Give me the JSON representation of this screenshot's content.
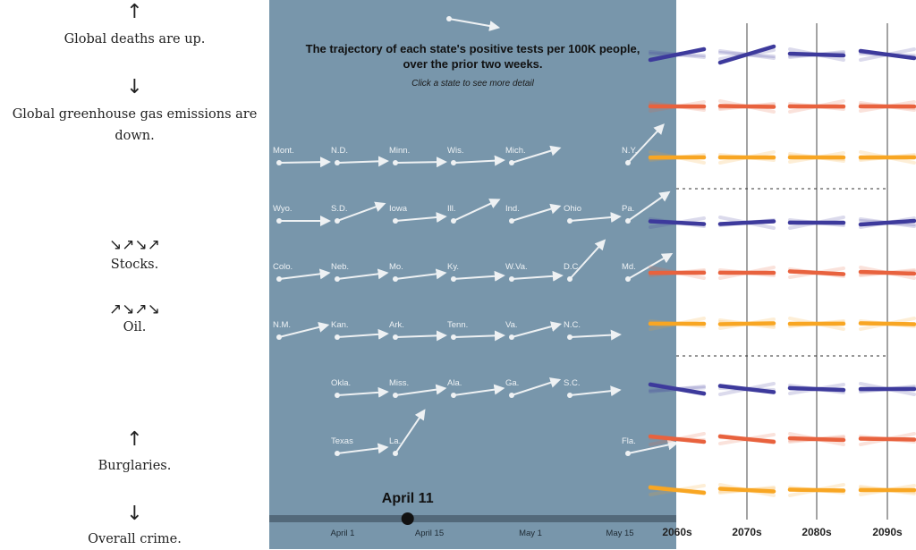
{
  "left_panel": {
    "items": [
      {
        "arrow": "↑",
        "text": "Global deaths are up."
      },
      {
        "arrow": "↓",
        "text": "Global greenhouse gas emissions are down."
      },
      {
        "arrow": "↘↗↘↗",
        "text": "Stocks."
      },
      {
        "arrow": "↗↘↗↘",
        "text": "Oil."
      },
      {
        "arrow": "↑",
        "text": "Burglaries."
      },
      {
        "arrow": "↓",
        "text": "Overall crime."
      }
    ]
  },
  "state_panel": {
    "title": "The trajectory of each state's positive tests per 100K people, over the prior two weeks.",
    "subtitle": "Click a state to see more detail",
    "legend_arrow_angle": -10,
    "background": "#7896ab",
    "states": [
      {
        "name": "Mont.",
        "row": 0,
        "col": 0,
        "angle": 1
      },
      {
        "name": "N.D.",
        "row": 0,
        "col": 1,
        "angle": 2
      },
      {
        "name": "Minn.",
        "row": 0,
        "col": 2,
        "angle": 1
      },
      {
        "name": "Wis.",
        "row": 0,
        "col": 3,
        "angle": 3
      },
      {
        "name": "Mich.",
        "row": 0,
        "col": 4,
        "angle": 17
      },
      {
        "name": "N.Y.",
        "row": 0,
        "col": 6,
        "angle": 47
      },
      {
        "name": "Wyo.",
        "row": 1,
        "col": 0,
        "angle": 0
      },
      {
        "name": "S.D.",
        "row": 1,
        "col": 1,
        "angle": 20
      },
      {
        "name": "Iowa",
        "row": 1,
        "col": 2,
        "angle": 5
      },
      {
        "name": "Ill.",
        "row": 1,
        "col": 3,
        "angle": 25
      },
      {
        "name": "Ind.",
        "row": 1,
        "col": 4,
        "angle": 17
      },
      {
        "name": "Ohio",
        "row": 1,
        "col": 5,
        "angle": 5
      },
      {
        "name": "Pa.",
        "row": 1,
        "col": 6,
        "angle": 35
      },
      {
        "name": "Colo.",
        "row": 2,
        "col": 0,
        "angle": 7
      },
      {
        "name": "Neb.",
        "row": 2,
        "col": 1,
        "angle": 7
      },
      {
        "name": "Mo.",
        "row": 2,
        "col": 2,
        "angle": 7
      },
      {
        "name": "Ky.",
        "row": 2,
        "col": 3,
        "angle": 4
      },
      {
        "name": "W.Va.",
        "row": 2,
        "col": 4,
        "angle": 4
      },
      {
        "name": "D.C.",
        "row": 2,
        "col": 5,
        "angle": 48
      },
      {
        "name": "Md.",
        "row": 2,
        "col": 6,
        "angle": 30
      },
      {
        "name": "N.M.",
        "row": 3,
        "col": 0,
        "angle": 14
      },
      {
        "name": "Kan.",
        "row": 3,
        "col": 1,
        "angle": 4
      },
      {
        "name": "Ark.",
        "row": 3,
        "col": 2,
        "angle": 2
      },
      {
        "name": "Tenn.",
        "row": 3,
        "col": 3,
        "angle": 2
      },
      {
        "name": "Va.",
        "row": 3,
        "col": 4,
        "angle": 15
      },
      {
        "name": "N.C.",
        "row": 3,
        "col": 5,
        "angle": 3
      },
      {
        "name": "Okla.",
        "row": 4,
        "col": 1,
        "angle": 4
      },
      {
        "name": "Miss.",
        "row": 4,
        "col": 2,
        "angle": 8
      },
      {
        "name": "Ala.",
        "row": 4,
        "col": 3,
        "angle": 8
      },
      {
        "name": "Ga.",
        "row": 4,
        "col": 4,
        "angle": 18
      },
      {
        "name": "S.C.",
        "row": 4,
        "col": 5,
        "angle": 6
      },
      {
        "name": "Texas",
        "row": 5,
        "col": 1,
        "angle": 7
      },
      {
        "name": "La.",
        "row": 5,
        "col": 2,
        "angle": 56
      },
      {
        "name": "Fla.",
        "row": 5,
        "col": 6,
        "angle": 12
      }
    ],
    "timeline": {
      "current_date": "April 11",
      "position_fraction": 0.34,
      "ticks": [
        "April 1",
        "April 15",
        "May 1",
        "May 15"
      ]
    }
  },
  "decade_panel": {
    "decades": [
      "2060s",
      "2070s",
      "2080s",
      "2090s"
    ],
    "colors": {
      "blue": "#3d3a9c",
      "red": "#e8623e",
      "orange": "#f8a623"
    },
    "groups": [
      {
        "blue": [
          12,
          18,
          -2,
          -8
        ],
        "red": [
          0,
          -1,
          0,
          0
        ],
        "orange": [
          0,
          0,
          0,
          0
        ]
      },
      {
        "blue": [
          -3,
          3,
          0,
          4
        ],
        "red": [
          0,
          0,
          -3,
          -2
        ],
        "orange": [
          0,
          1,
          0,
          -1
        ]
      },
      {
        "blue": [
          -10,
          -7,
          -2,
          0
        ],
        "red": [
          -6,
          -6,
          -2,
          -1
        ],
        "orange": [
          -6,
          -3,
          -1,
          0
        ]
      }
    ]
  }
}
